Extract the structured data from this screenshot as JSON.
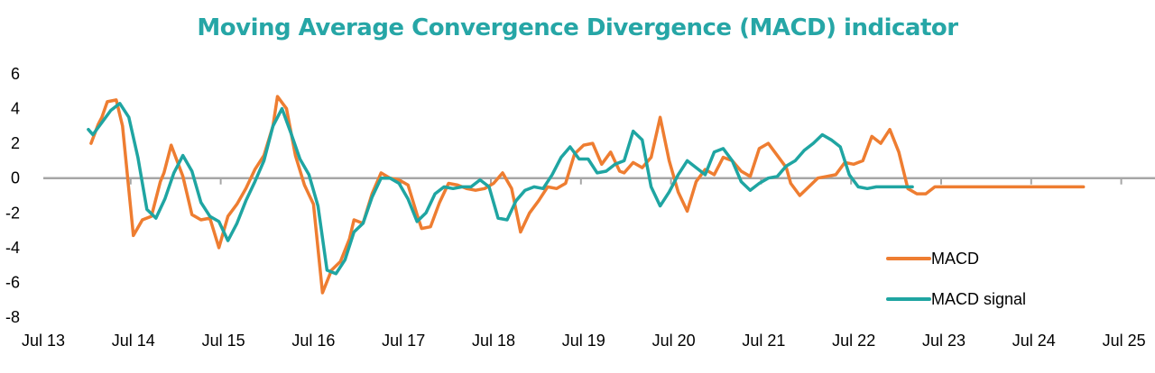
{
  "chart_data": {
    "type": "line",
    "title": "Moving Average Convergence Divergence (MACD) indicator",
    "xlabel": "",
    "ylabel": "",
    "x_ticks": [
      "Jul 13",
      "Jul 14",
      "Jul 15",
      "Jul 16",
      "Jul 17",
      "Jul 18",
      "Jul 19",
      "Jul 20",
      "Jul 21",
      "Jul 22",
      "Jul 23",
      "Jul 24",
      "Jul 25"
    ],
    "y_ticks": [
      "6",
      "4",
      "2",
      "0",
      "-2",
      "-4",
      "-6",
      "-8"
    ],
    "ylim": [
      -8,
      6
    ],
    "xlim": [
      2013.5,
      2025.5
    ],
    "grid": false,
    "legend_position": "bottom-right",
    "series": [
      {
        "name": "MACD",
        "color": "#ee7d31",
        "x": [
          2014.03,
          2014.11,
          2014.15,
          2014.21,
          2014.31,
          2014.38,
          2014.5,
          2014.6,
          2014.7,
          2014.8,
          2014.84,
          2014.92,
          2015.05,
          2015.15,
          2015.25,
          2015.35,
          2015.45,
          2015.55,
          2015.65,
          2015.75,
          2015.85,
          2015.95,
          2016.05,
          2016.1,
          2016.2,
          2016.3,
          2016.4,
          2016.5,
          2016.6,
          2016.7,
          2016.8,
          2016.9,
          2016.95,
          2017.05,
          2017.15,
          2017.25,
          2017.35,
          2017.45,
          2017.55,
          2017.65,
          2017.7,
          2017.8,
          2017.9,
          2018.0,
          2018.1,
          2018.2,
          2018.3,
          2018.4,
          2018.5,
          2018.6,
          2018.7,
          2018.8,
          2018.9,
          2019.0,
          2019.1,
          2019.2,
          2019.3,
          2019.4,
          2019.5,
          2019.6,
          2019.7,
          2019.8,
          2019.9,
          2019.95,
          2020.05,
          2020.15,
          2020.25,
          2020.35,
          2020.45,
          2020.55,
          2020.65,
          2020.75,
          2020.85,
          2020.95,
          2021.05,
          2021.15,
          2021.25,
          2021.35,
          2021.45,
          2021.55,
          2021.65,
          2021.75,
          2021.8,
          2021.9,
          2022.0,
          2022.1,
          2022.2,
          2022.3,
          2022.4,
          2022.5,
          2022.6,
          2022.7,
          2022.8,
          2022.9,
          2023.0,
          2023.1,
          2023.2,
          2023.3,
          2023.4,
          2023.5,
          2023.6,
          2023.7,
          2023.8,
          2023.9,
          2024.0,
          2024.1,
          2024.2,
          2024.3,
          2024.4,
          2024.5,
          2024.6,
          2024.7,
          2024.75,
          2024.85,
          2024.95,
          2025.05
        ],
        "values": [
          2.0,
          3.1,
          3.5,
          4.4,
          4.5,
          3.0,
          -3.3,
          -2.4,
          -2.2,
          -0.2,
          0.3,
          1.9,
          0.1,
          -2.1,
          -2.4,
          -2.3,
          -4.0,
          -2.2,
          -1.5,
          -0.6,
          0.5,
          1.3,
          3.0,
          4.7,
          4.0,
          1.3,
          -0.4,
          -1.5,
          -6.6,
          -5.3,
          -4.8,
          -3.5,
          -2.4,
          -2.6,
          -0.9,
          0.3,
          0.0,
          -0.1,
          -0.4,
          -2.1,
          -2.9,
          -2.8,
          -1.4,
          -0.3,
          -0.4,
          -0.6,
          -0.7,
          -0.6,
          -0.3,
          0.3,
          -0.6,
          -3.1,
          -2.0,
          -1.3,
          -0.5,
          -0.6,
          -0.3,
          1.4,
          1.9,
          2.0,
          0.8,
          1.5,
          0.4,
          0.3,
          0.9,
          0.6,
          1.2,
          3.5,
          1.0,
          -0.8,
          -1.9,
          -0.2,
          0.5,
          0.2,
          1.2,
          1.0,
          0.4,
          0.1,
          1.7,
          2.0,
          1.3,
          0.6,
          -0.3,
          -1.0,
          -0.5,
          0.0,
          0.1,
          0.2,
          0.9,
          0.8,
          1.0,
          2.4,
          2.0,
          2.8,
          1.5,
          -0.6,
          -0.9,
          -0.9,
          -0.5,
          -0.5,
          -0.5,
          -0.5,
          -0.5,
          -0.5,
          -0.5,
          -0.5,
          -0.5,
          -0.5,
          -0.5,
          -0.5,
          -0.5,
          -0.5,
          -0.5,
          -0.5,
          -0.5,
          -0.5
        ],
        "values_note": "",
        "label": "MACD"
      },
      {
        "name": "MACD signal",
        "color": "#1fa5a2",
        "x": [
          2014.0,
          2014.05,
          2014.15,
          2014.25,
          2014.35,
          2014.45,
          2014.55,
          2014.65,
          2014.75,
          2014.85,
          2014.95,
          2015.05,
          2015.15,
          2015.25,
          2015.35,
          2015.45,
          2015.55,
          2015.65,
          2015.75,
          2015.85,
          2015.95,
          2016.05,
          2016.15,
          2016.25,
          2016.35,
          2016.45,
          2016.55,
          2016.65,
          2016.75,
          2016.85,
          2016.95,
          2017.05,
          2017.15,
          2017.25,
          2017.35,
          2017.45,
          2017.55,
          2017.65,
          2017.75,
          2017.85,
          2017.95,
          2018.05,
          2018.15,
          2018.25,
          2018.35,
          2018.45,
          2018.55,
          2018.65,
          2018.75,
          2018.85,
          2018.95,
          2019.05,
          2019.15,
          2019.25,
          2019.35,
          2019.45,
          2019.55,
          2019.65,
          2019.75,
          2019.85,
          2019.95,
          2020.05,
          2020.15,
          2020.25,
          2020.35,
          2020.45,
          2020.55,
          2020.65,
          2020.75,
          2020.85,
          2020.95,
          2021.05,
          2021.15,
          2021.25,
          2021.35,
          2021.45,
          2021.55,
          2021.65,
          2021.75,
          2021.85,
          2021.95,
          2022.05,
          2022.15,
          2022.25,
          2022.35,
          2022.45,
          2022.55,
          2022.65,
          2022.75,
          2022.85,
          2022.95,
          2023.05,
          2023.15
        ],
        "values": [
          2.8,
          2.5,
          3.2,
          3.9,
          4.3,
          3.5,
          1.2,
          -1.8,
          -2.3,
          -1.2,
          0.3,
          1.3,
          0.4,
          -1.4,
          -2.2,
          -2.5,
          -3.6,
          -2.6,
          -1.3,
          -0.2,
          1.0,
          3.0,
          4.0,
          2.6,
          1.1,
          0.2,
          -1.6,
          -5.3,
          -5.5,
          -4.7,
          -3.1,
          -2.6,
          -1.1,
          0.0,
          0.0,
          -0.3,
          -1.2,
          -2.5,
          -2.0,
          -0.9,
          -0.5,
          -0.6,
          -0.5,
          -0.5,
          -0.1,
          -0.5,
          -2.3,
          -2.4,
          -1.3,
          -0.7,
          -0.5,
          -0.6,
          0.2,
          1.2,
          1.8,
          1.1,
          1.1,
          0.3,
          0.4,
          0.8,
          1.0,
          2.7,
          2.2,
          -0.5,
          -1.6,
          -0.8,
          0.2,
          1.0,
          0.6,
          0.2,
          1.5,
          1.7,
          1.0,
          -0.2,
          -0.7,
          -0.3,
          0.0,
          0.1,
          0.7,
          1.0,
          1.6,
          2.0,
          2.5,
          2.2,
          1.8,
          0.2,
          -0.5,
          -0.6,
          -0.5,
          -0.5,
          -0.5,
          -0.5,
          -0.5
        ],
        "label": "MACD signal"
      }
    ]
  }
}
